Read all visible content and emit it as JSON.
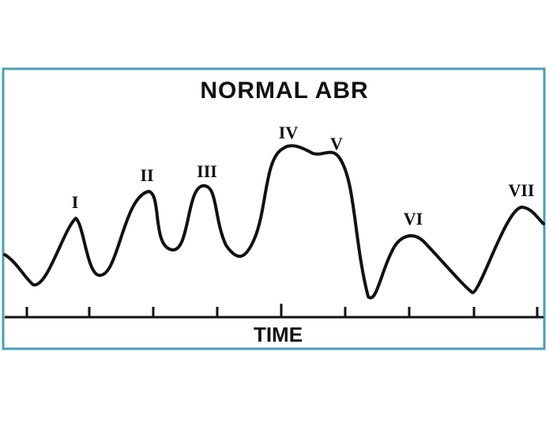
{
  "title": "NORMAL ABR",
  "axis_label": "TIME",
  "colors": {
    "frame": "#4a9fb0",
    "line": "#111111"
  },
  "peaks": [
    "I",
    "II",
    "III",
    "IV",
    "V",
    "VI",
    "VII"
  ]
}
